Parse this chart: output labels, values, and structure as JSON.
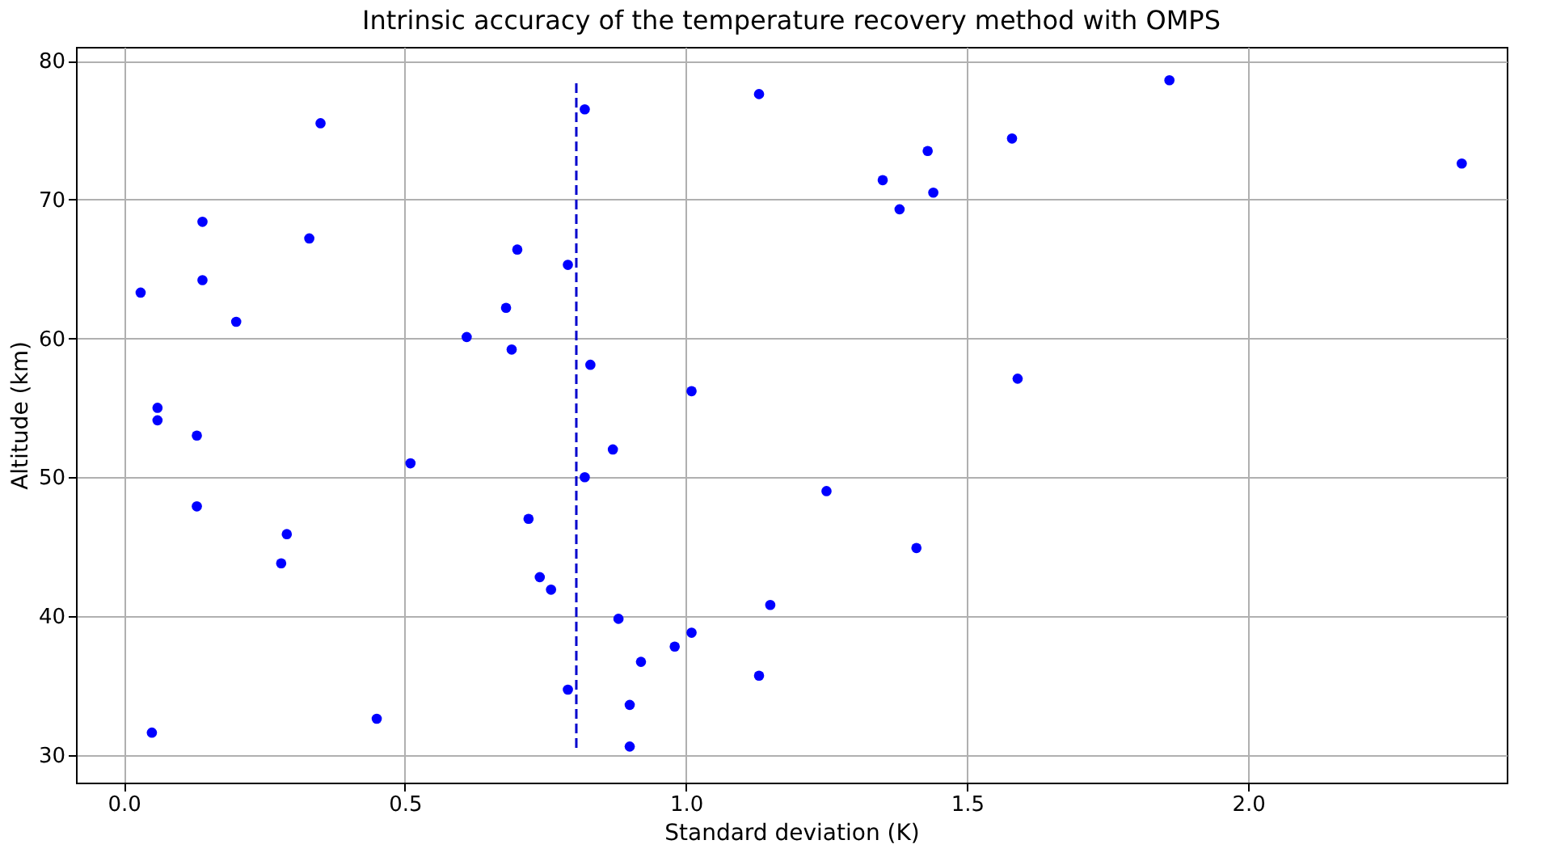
{
  "chart_data": {
    "type": "scatter",
    "title": "Intrinsic accuracy of the temperature recovery method with OMPS",
    "xlabel": "Standard deviation (K)",
    "ylabel": "Altitude (km)",
    "xlim": [
      -0.085,
      2.46
    ],
    "ylim": [
      28,
      81
    ],
    "xticks": [
      {
        "value": 0,
        "label": "0.0"
      },
      0.5,
      {
        "value": 1,
        "label": "1.0"
      },
      1.5,
      {
        "value": 2,
        "label": "2.0"
      }
    ],
    "yticks": [
      30,
      40,
      50,
      60,
      70,
      80
    ],
    "grid": true,
    "marker": "circle",
    "series": [
      {
        "color": "#0000ff",
        "x": [
          0.03,
          0.05,
          0.06,
          0.06,
          0.13,
          0.13,
          0.14,
          0.14,
          0.2,
          0.28,
          0.29,
          0.33,
          0.35,
          0.45,
          0.51,
          0.61,
          0.68,
          0.69,
          0.7,
          0.72,
          0.74,
          0.76,
          0.79,
          0.79,
          0.82,
          0.82,
          0.83,
          0.87,
          0.88,
          0.9,
          0.9,
          0.92,
          0.98,
          1.01,
          1.01,
          1.13,
          1.13,
          1.15,
          1.25,
          1.35,
          1.38,
          1.41,
          1.43,
          1.44,
          1.58,
          1.59,
          1.86,
          2.38
        ],
        "values": [
          63.3,
          31.6,
          55.0,
          54.1,
          53.0,
          47.9,
          64.2,
          68.4,
          61.2,
          43.8,
          45.9,
          67.2,
          75.5,
          32.6,
          51.0,
          60.1,
          62.2,
          59.2,
          66.4,
          47.0,
          42.8,
          41.9,
          65.3,
          34.7,
          50.0,
          76.5,
          58.1,
          52.0,
          39.8,
          30.6,
          33.6,
          36.7,
          37.8,
          38.8,
          56.2,
          77.6,
          35.7,
          40.8,
          49.0,
          71.4,
          69.3,
          44.9,
          73.5,
          70.5,
          74.4,
          57.1,
          78.6,
          72.6
        ]
      },
      {
        "type": "line",
        "color": "#0000cc",
        "line_style": "dashed",
        "marker": "none",
        "x": [
          0.805,
          0.805
        ],
        "values": [
          30.5,
          78.5
        ]
      }
    ]
  }
}
